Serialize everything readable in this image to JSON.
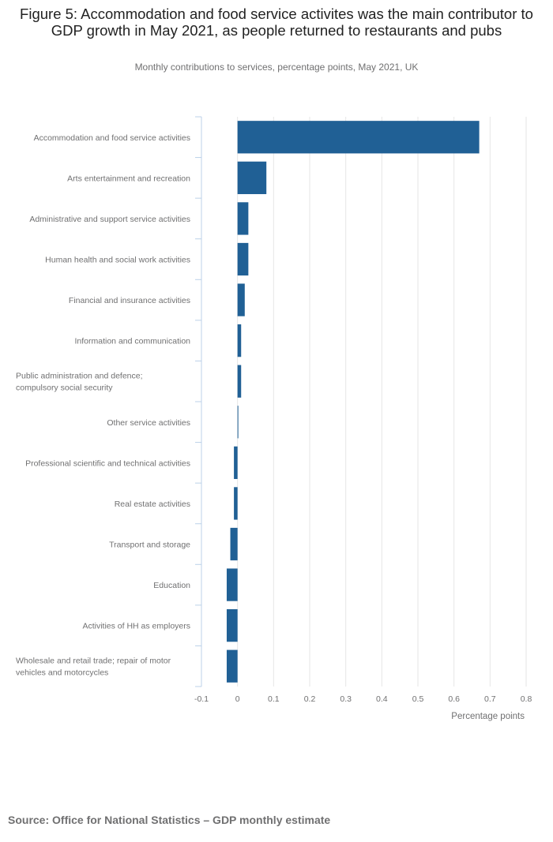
{
  "title": "Figure 5: Accommodation and food service activites was the main contributor to GDP growth in May 2021, as people returned to restaurants and pubs",
  "subtitle": "Monthly contributions to services, percentage points, May 2021, UK",
  "source": "Source: Office for National Statistics – GDP monthly estimate",
  "colors": {
    "bar": "#206095",
    "grid": "#e6e6e6",
    "axis": "#bcd1e8"
  },
  "chart_data": {
    "type": "bar",
    "orientation": "horizontal",
    "categories": [
      "Accommodation and food service activities",
      "Arts entertainment and recreation",
      "Administrative and support service activities",
      "Human health and social work activities",
      "Financial and insurance activities",
      "Information and communication",
      "Public administration and defence; compulsory social security",
      "Other service activities",
      "Professional scientific and technical activities",
      "Real estate activities",
      "Transport and storage",
      "Education",
      "Activities of HH as employers",
      "Wholesale and retail trade; repair of motor vehicles and motorcycles"
    ],
    "values": [
      0.67,
      0.08,
      0.03,
      0.03,
      0.02,
      0.01,
      0.01,
      0.0,
      -0.01,
      -0.01,
      -0.02,
      -0.03,
      -0.03,
      -0.03
    ],
    "xlim": [
      -0.1,
      0.8
    ],
    "xticks": [
      -0.1,
      0,
      0.1,
      0.2,
      0.3,
      0.4,
      0.5,
      0.6,
      0.7,
      0.8
    ],
    "xtick_labels": [
      "-0.1",
      "0",
      "0.1",
      "0.2",
      "0.3",
      "0.4",
      "0.5",
      "0.6",
      "0.7",
      "0.8"
    ],
    "xlabel": "Percentage points",
    "ylabel": "",
    "grid": true,
    "title": "Figure 5: Accommodation and food service activites was the main contributor to GDP growth in May 2021, as people returned to restaurants and pubs"
  }
}
